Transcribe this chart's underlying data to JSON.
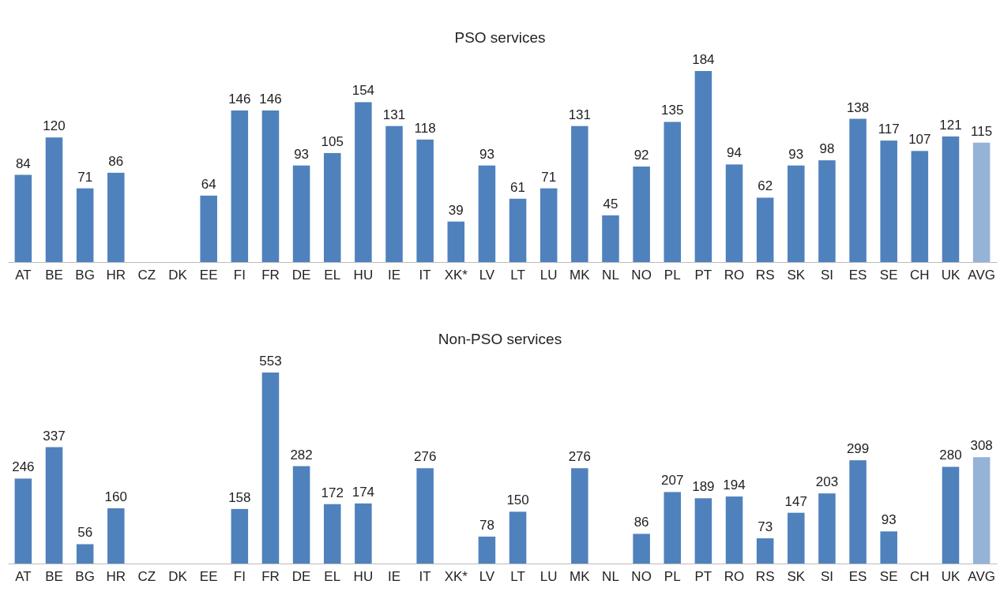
{
  "chart_data": [
    {
      "type": "bar",
      "title": "PSO services",
      "data_labels": true,
      "categories": [
        "AT",
        "BE",
        "BG",
        "HR",
        "CZ",
        "DK",
        "EE",
        "FI",
        "FR",
        "DE",
        "EL",
        "HU",
        "IE",
        "IT",
        "XK*",
        "LV",
        "LT",
        "LU",
        "MK",
        "NL",
        "NO",
        "PL",
        "PT",
        "RO",
        "RS",
        "SK",
        "SI",
        "ES",
        "SE",
        "CH",
        "UK",
        "AVG"
      ],
      "values": [
        84,
        120,
        71,
        86,
        null,
        null,
        64,
        146,
        146,
        93,
        105,
        154,
        131,
        118,
        39,
        93,
        61,
        71,
        131,
        45,
        92,
        135,
        184,
        94,
        62,
        93,
        98,
        138,
        117,
        107,
        121,
        115
      ],
      "colors": [
        "#4f81bd",
        "#4f81bd",
        "#4f81bd",
        "#4f81bd",
        null,
        null,
        "#4f81bd",
        "#4f81bd",
        "#4f81bd",
        "#4f81bd",
        "#4f81bd",
        "#4f81bd",
        "#4f81bd",
        "#4f81bd",
        "#4f81bd",
        "#4f81bd",
        "#4f81bd",
        "#4f81bd",
        "#4f81bd",
        "#4f81bd",
        "#4f81bd",
        "#4f81bd",
        "#4f81bd",
        "#4f81bd",
        "#4f81bd",
        "#4f81bd",
        "#4f81bd",
        "#4f81bd",
        "#4f81bd",
        "#4f81bd",
        "#4f81bd",
        "#95b3d7"
      ]
    },
    {
      "type": "bar",
      "title": "Non-PSO services",
      "data_labels": true,
      "categories": [
        "AT",
        "BE",
        "BG",
        "HR",
        "CZ",
        "DK",
        "EE",
        "FI",
        "FR",
        "DE",
        "EL",
        "HU",
        "IE",
        "IT",
        "XK*",
        "LV",
        "LT",
        "LU",
        "MK",
        "NL",
        "NO",
        "PL",
        "PT",
        "RO",
        "RS",
        "SK",
        "SI",
        "ES",
        "SE",
        "CH",
        "UK",
        "AVG"
      ],
      "values": [
        246,
        337,
        56,
        160,
        null,
        null,
        null,
        158,
        553,
        282,
        172,
        174,
        null,
        276,
        null,
        78,
        150,
        null,
        276,
        null,
        86,
        207,
        189,
        194,
        73,
        147,
        203,
        299,
        93,
        null,
        280,
        308
      ],
      "colors": [
        "#4f81bd",
        "#4f81bd",
        "#4f81bd",
        "#4f81bd",
        null,
        null,
        null,
        "#4f81bd",
        "#4f81bd",
        "#4f81bd",
        "#4f81bd",
        "#4f81bd",
        null,
        "#4f81bd",
        null,
        "#4f81bd",
        "#4f81bd",
        null,
        "#4f81bd",
        null,
        "#4f81bd",
        "#4f81bd",
        "#4f81bd",
        "#4f81bd",
        "#4f81bd",
        "#4f81bd",
        "#4f81bd",
        "#4f81bd",
        "#4f81bd",
        null,
        "#4f81bd",
        "#95b3d7"
      ]
    }
  ]
}
